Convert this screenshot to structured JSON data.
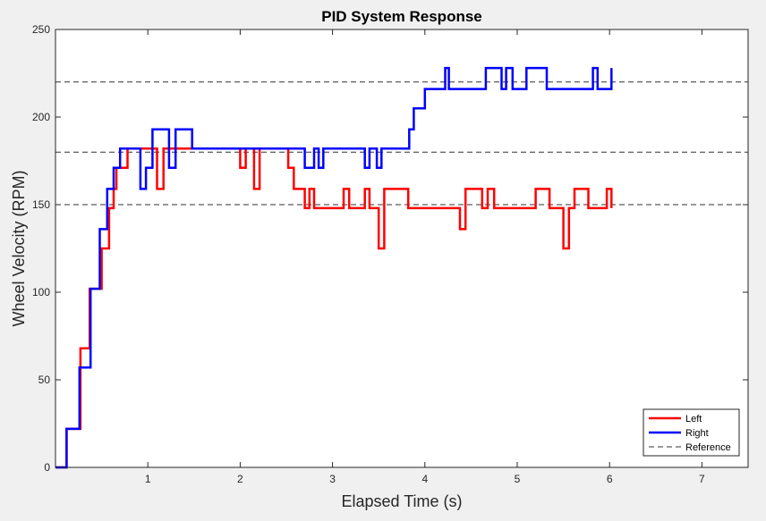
{
  "chart_data": {
    "type": "line",
    "title": "PID System Response",
    "xlabel": "Elapsed Time (s)",
    "ylabel": "Wheel Velocity (RPM)",
    "xlim": [
      0,
      7.5
    ],
    "ylim": [
      0,
      250
    ],
    "xticks": [
      1,
      2,
      3,
      4,
      5,
      6,
      7
    ],
    "yticks": [
      0,
      50,
      100,
      150,
      200,
      250
    ],
    "grid": false,
    "legend_position": "bottom-right",
    "reference_lines": [
      150,
      180,
      220
    ],
    "series": [
      {
        "name": "Left",
        "color": "#ff0000",
        "style": "solid",
        "step": true,
        "points": [
          [
            0,
            0
          ],
          [
            0.12,
            0
          ],
          [
            0.12,
            22
          ],
          [
            0.27,
            22
          ],
          [
            0.27,
            68
          ],
          [
            0.37,
            68
          ],
          [
            0.37,
            102
          ],
          [
            0.5,
            102
          ],
          [
            0.5,
            125
          ],
          [
            0.58,
            125
          ],
          [
            0.58,
            148
          ],
          [
            0.63,
            148
          ],
          [
            0.63,
            159
          ],
          [
            0.66,
            159
          ],
          [
            0.66,
            171
          ],
          [
            0.78,
            171
          ],
          [
            0.78,
            182
          ],
          [
            1.1,
            182
          ],
          [
            1.1,
            159
          ],
          [
            1.17,
            159
          ],
          [
            1.17,
            182
          ],
          [
            2.0,
            182
          ],
          [
            2.0,
            171
          ],
          [
            2.06,
            171
          ],
          [
            2.06,
            182
          ],
          [
            2.15,
            182
          ],
          [
            2.15,
            159
          ],
          [
            2.21,
            159
          ],
          [
            2.21,
            182
          ],
          [
            2.52,
            182
          ],
          [
            2.52,
            171
          ],
          [
            2.58,
            171
          ],
          [
            2.58,
            159
          ],
          [
            2.7,
            159
          ],
          [
            2.7,
            148
          ],
          [
            2.75,
            148
          ],
          [
            2.75,
            159
          ],
          [
            2.8,
            159
          ],
          [
            2.8,
            148
          ],
          [
            3.12,
            148
          ],
          [
            3.12,
            159
          ],
          [
            3.18,
            159
          ],
          [
            3.18,
            148
          ],
          [
            3.35,
            148
          ],
          [
            3.35,
            159
          ],
          [
            3.4,
            159
          ],
          [
            3.4,
            148
          ],
          [
            3.5,
            148
          ],
          [
            3.5,
            125
          ],
          [
            3.56,
            125
          ],
          [
            3.56,
            159
          ],
          [
            3.82,
            159
          ],
          [
            3.82,
            148
          ],
          [
            4.38,
            148
          ],
          [
            4.38,
            136
          ],
          [
            4.44,
            136
          ],
          [
            4.44,
            159
          ],
          [
            4.62,
            159
          ],
          [
            4.62,
            148
          ],
          [
            4.68,
            148
          ],
          [
            4.68,
            159
          ],
          [
            4.75,
            159
          ],
          [
            4.75,
            148
          ],
          [
            5.2,
            148
          ],
          [
            5.2,
            159
          ],
          [
            5.35,
            159
          ],
          [
            5.35,
            148
          ],
          [
            5.5,
            148
          ],
          [
            5.5,
            125
          ],
          [
            5.56,
            125
          ],
          [
            5.56,
            148
          ],
          [
            5.62,
            148
          ],
          [
            5.62,
            159
          ],
          [
            5.77,
            159
          ],
          [
            5.77,
            148
          ],
          [
            5.97,
            148
          ],
          [
            5.97,
            159
          ],
          [
            6.02,
            159
          ],
          [
            6.02,
            148
          ]
        ]
      },
      {
        "name": "Right",
        "color": "#0000ff",
        "style": "solid",
        "step": true,
        "points": [
          [
            0,
            0
          ],
          [
            0.12,
            0
          ],
          [
            0.12,
            22
          ],
          [
            0.26,
            22
          ],
          [
            0.26,
            57
          ],
          [
            0.38,
            57
          ],
          [
            0.38,
            102
          ],
          [
            0.48,
            102
          ],
          [
            0.48,
            136
          ],
          [
            0.56,
            136
          ],
          [
            0.56,
            159
          ],
          [
            0.63,
            159
          ],
          [
            0.63,
            171
          ],
          [
            0.7,
            171
          ],
          [
            0.7,
            182
          ],
          [
            0.92,
            182
          ],
          [
            0.92,
            159
          ],
          [
            0.98,
            159
          ],
          [
            0.98,
            171
          ],
          [
            1.05,
            171
          ],
          [
            1.05,
            193
          ],
          [
            1.23,
            193
          ],
          [
            1.23,
            171
          ],
          [
            1.3,
            171
          ],
          [
            1.3,
            193
          ],
          [
            1.48,
            193
          ],
          [
            1.48,
            182
          ],
          [
            2.7,
            182
          ],
          [
            2.7,
            171
          ],
          [
            2.8,
            171
          ],
          [
            2.8,
            182
          ],
          [
            2.85,
            182
          ],
          [
            2.85,
            171
          ],
          [
            2.9,
            171
          ],
          [
            2.9,
            182
          ],
          [
            3.35,
            182
          ],
          [
            3.35,
            171
          ],
          [
            3.4,
            171
          ],
          [
            3.4,
            182
          ],
          [
            3.48,
            182
          ],
          [
            3.48,
            171
          ],
          [
            3.53,
            171
          ],
          [
            3.53,
            182
          ],
          [
            3.83,
            182
          ],
          [
            3.83,
            193
          ],
          [
            3.88,
            193
          ],
          [
            3.88,
            205
          ],
          [
            4.0,
            205
          ],
          [
            4.0,
            216
          ],
          [
            4.22,
            216
          ],
          [
            4.22,
            228
          ],
          [
            4.26,
            228
          ],
          [
            4.26,
            216
          ],
          [
            4.66,
            216
          ],
          [
            4.66,
            228
          ],
          [
            4.83,
            228
          ],
          [
            4.83,
            216
          ],
          [
            4.88,
            216
          ],
          [
            4.88,
            228
          ],
          [
            4.95,
            228
          ],
          [
            4.95,
            216
          ],
          [
            5.1,
            216
          ],
          [
            5.1,
            228
          ],
          [
            5.32,
            228
          ],
          [
            5.32,
            216
          ],
          [
            5.82,
            216
          ],
          [
            5.82,
            228
          ],
          [
            5.87,
            228
          ],
          [
            5.87,
            216
          ],
          [
            6.02,
            216
          ],
          [
            6.02,
            228
          ]
        ]
      },
      {
        "name": "Reference",
        "color": "#303030",
        "style": "dashed"
      }
    ]
  }
}
